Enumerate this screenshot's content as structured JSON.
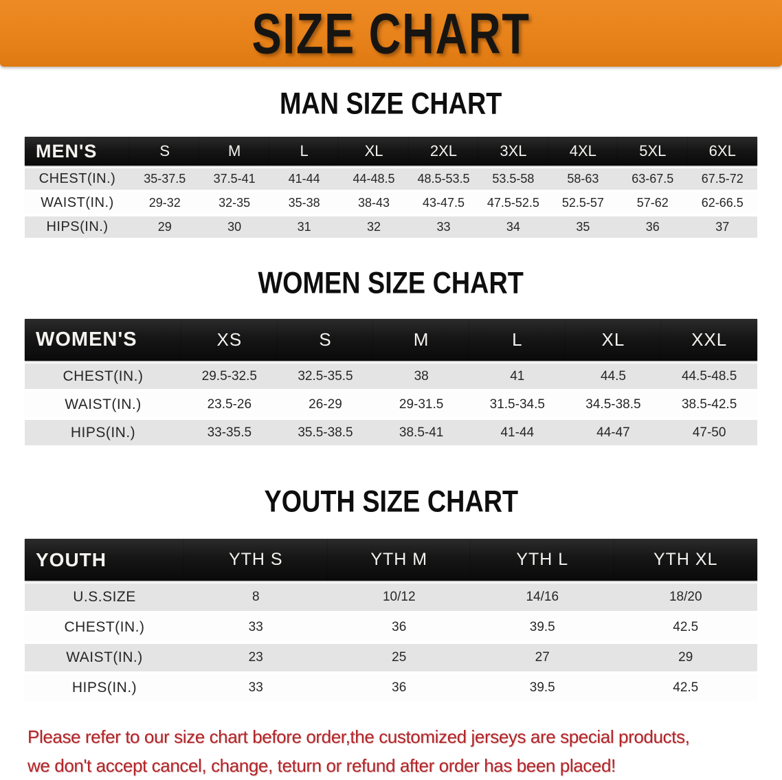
{
  "banner": {
    "title": "SIZE CHART"
  },
  "chart_data": [
    {
      "type": "table",
      "title": "MAN SIZE CHART",
      "corner_label": "MEN'S",
      "columns": [
        "S",
        "M",
        "L",
        "XL",
        "2XL",
        "3XL",
        "4XL",
        "5XL",
        "6XL"
      ],
      "rows": [
        {
          "label": "CHEST(IN.)",
          "values": [
            "35-37.5",
            "37.5-41",
            "41-44",
            "44-48.5",
            "48.5-53.5",
            "53.5-58",
            "58-63",
            "63-67.5",
            "67.5-72"
          ]
        },
        {
          "label": "WAIST(IN.)",
          "values": [
            "29-32",
            "32-35",
            "35-38",
            "38-43",
            "43-47.5",
            "47.5-52.5",
            "52.5-57",
            "57-62",
            "62-66.5"
          ]
        },
        {
          "label": "HIPS(IN.)",
          "values": [
            "29",
            "30",
            "31",
            "32",
            "33",
            "34",
            "35",
            "36",
            "37"
          ]
        }
      ]
    },
    {
      "type": "table",
      "title": "WOMEN SIZE CHART",
      "corner_label": "WOMEN'S",
      "columns": [
        "XS",
        "S",
        "M",
        "L",
        "XL",
        "XXL"
      ],
      "rows": [
        {
          "label": "CHEST(IN.)",
          "values": [
            "29.5-32.5",
            "32.5-35.5",
            "38",
            "41",
            "44.5",
            "44.5-48.5"
          ]
        },
        {
          "label": "WAIST(IN.)",
          "values": [
            "23.5-26",
            "26-29",
            "29-31.5",
            "31.5-34.5",
            "34.5-38.5",
            "38.5-42.5"
          ]
        },
        {
          "label": "HIPS(IN.)",
          "values": [
            "33-35.5",
            "35.5-38.5",
            "38.5-41",
            "41-44",
            "44-47",
            "47-50"
          ]
        }
      ]
    },
    {
      "type": "table",
      "title": "YOUTH SIZE CHART",
      "corner_label": "YOUTH",
      "columns": [
        "YTH S",
        "YTH M",
        "YTH L",
        "YTH XL"
      ],
      "rows": [
        {
          "label": "U.S.SIZE",
          "values": [
            "8",
            "10/12",
            "14/16",
            "18/20"
          ]
        },
        {
          "label": "CHEST(IN.)",
          "values": [
            "33",
            "36",
            "39.5",
            "42.5"
          ]
        },
        {
          "label": "WAIST(IN.)",
          "values": [
            "23",
            "25",
            "27",
            "29"
          ]
        },
        {
          "label": "HIPS(IN.)",
          "values": [
            "33",
            "36",
            "39.5",
            "42.5"
          ]
        }
      ]
    }
  ],
  "disclaimer": {
    "line1": "Please refer to our size chart before order,the customized jerseys are special products,",
    "line2": "we don't accept cancel, change, teturn or refund after order has been placed!"
  },
  "colors": {
    "banner_bg": "#E8821A",
    "banner_text": "#171512",
    "header_bar_bg": "#161616",
    "header_bar_text": "#F5F3EF",
    "row_alt_bg": "#E4E4E5",
    "row_bg": "#FDFDFD",
    "body_text": "#262626",
    "heading_text": "#0E0E0E",
    "disclaimer_text": "#B22428"
  }
}
